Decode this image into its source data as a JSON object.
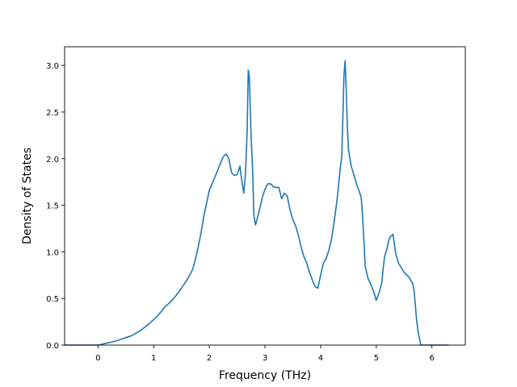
{
  "chart_data": {
    "type": "line",
    "title": "",
    "xlabel": "Frequency (THz)",
    "ylabel": "Density of States",
    "xlim": [
      -0.6,
      6.6
    ],
    "ylim": [
      0.0,
      3.2
    ],
    "xticks": [
      0,
      1,
      2,
      3,
      4,
      5,
      6
    ],
    "xtick_labels": [
      "0",
      "1",
      "2",
      "3",
      "4",
      "5",
      "6"
    ],
    "yticks": [
      0.0,
      0.5,
      1.0,
      1.5,
      2.0,
      2.5,
      3.0
    ],
    "ytick_labels": [
      "0.0",
      "0.5",
      "1.0",
      "1.5",
      "2.0",
      "2.5",
      "3.0"
    ],
    "grid": false,
    "legend": "none",
    "colors": {
      "line": "#1f77b4",
      "axes": "#000000",
      "background": "#ffffff"
    },
    "series": [
      {
        "x": [
          -0.6,
          -0.3,
          0.0,
          0.15,
          0.3,
          0.45,
          0.6,
          0.75,
          0.9,
          1.05,
          1.15,
          1.2,
          1.3,
          1.4,
          1.5,
          1.6,
          1.7,
          1.75,
          1.8,
          1.85,
          1.9,
          2.0,
          2.1,
          2.2,
          2.25,
          2.3,
          2.35,
          2.4,
          2.45,
          2.5,
          2.53,
          2.55,
          2.58,
          2.62,
          2.65,
          2.68,
          2.7,
          2.72,
          2.75,
          2.78,
          2.8,
          2.83,
          2.85,
          2.88,
          2.92,
          2.95,
          3.0,
          3.05,
          3.1,
          3.15,
          3.2,
          3.25,
          3.3,
          3.35,
          3.4,
          3.45,
          3.5,
          3.55,
          3.6,
          3.65,
          3.7,
          3.75,
          3.8,
          3.85,
          3.9,
          3.95,
          4.0,
          4.05,
          4.1,
          4.15,
          4.2,
          4.25,
          4.3,
          4.35,
          4.38,
          4.4,
          4.42,
          4.44,
          4.46,
          4.48,
          4.5,
          4.55,
          4.6,
          4.65,
          4.7,
          4.73,
          4.75,
          4.78,
          4.8,
          4.85,
          4.9,
          4.95,
          5.0,
          5.05,
          5.1,
          5.12,
          5.15,
          5.2,
          5.22,
          5.25,
          5.3,
          5.35,
          5.4,
          5.5,
          5.6,
          5.62,
          5.65,
          5.68,
          5.7,
          5.72,
          5.75,
          5.8,
          6.0,
          6.2,
          6.3
        ],
        "y": [
          0.0,
          0.0,
          0.0,
          0.02,
          0.04,
          0.07,
          0.1,
          0.15,
          0.22,
          0.3,
          0.37,
          0.41,
          0.46,
          0.53,
          0.61,
          0.7,
          0.81,
          0.92,
          1.05,
          1.2,
          1.38,
          1.66,
          1.8,
          1.95,
          2.02,
          2.05,
          2.0,
          1.85,
          1.82,
          1.83,
          1.88,
          1.92,
          1.78,
          1.63,
          1.85,
          2.3,
          2.95,
          2.87,
          2.25,
          1.85,
          1.4,
          1.29,
          1.33,
          1.4,
          1.5,
          1.58,
          1.67,
          1.73,
          1.73,
          1.7,
          1.69,
          1.69,
          1.57,
          1.63,
          1.6,
          1.45,
          1.35,
          1.28,
          1.18,
          1.05,
          0.95,
          0.88,
          0.78,
          0.7,
          0.63,
          0.61,
          0.75,
          0.88,
          0.93,
          1.02,
          1.15,
          1.35,
          1.58,
          1.88,
          2.02,
          2.45,
          2.9,
          3.05,
          2.75,
          2.35,
          2.1,
          1.92,
          1.82,
          1.72,
          1.64,
          1.58,
          1.42,
          1.1,
          0.85,
          0.72,
          0.65,
          0.58,
          0.48,
          0.56,
          0.67,
          0.8,
          0.95,
          1.05,
          1.12,
          1.16,
          1.19,
          0.98,
          0.88,
          0.78,
          0.72,
          0.69,
          0.67,
          0.58,
          0.45,
          0.3,
          0.15,
          0.0,
          0.0,
          0.0,
          0.0
        ]
      }
    ]
  }
}
